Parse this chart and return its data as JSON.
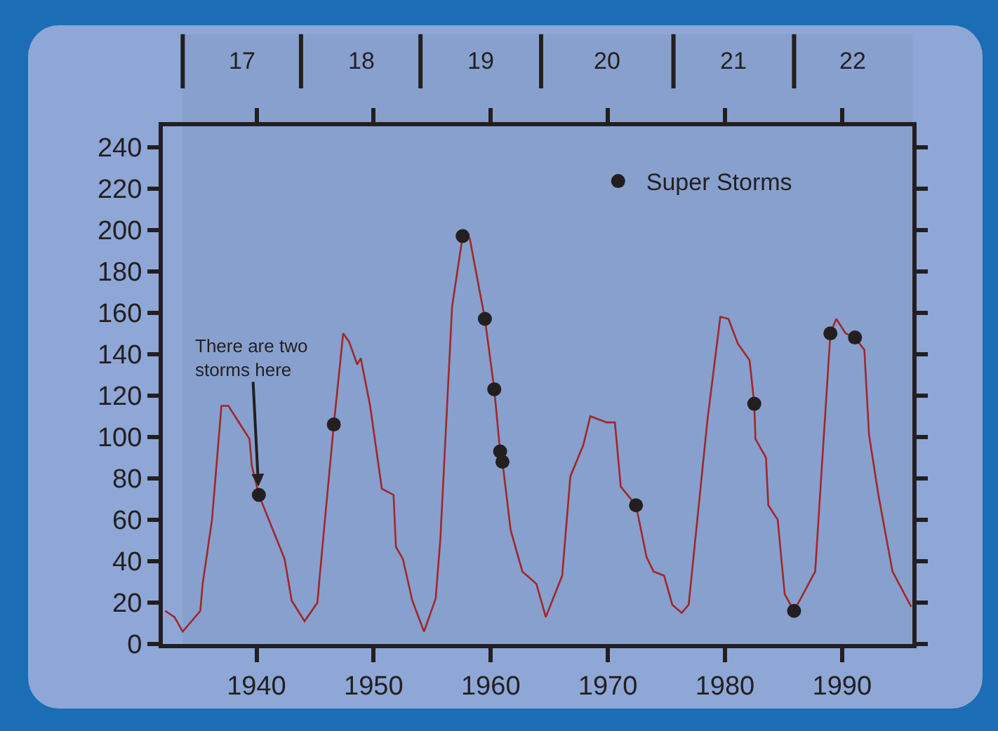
{
  "chart_data": {
    "type": "line",
    "xlim": [
      1932,
      1996
    ],
    "xticks": [
      1940,
      1950,
      1960,
      1970,
      1980,
      1990
    ],
    "ylim": [
      0,
      250
    ],
    "yticks": [
      0,
      20,
      40,
      60,
      80,
      100,
      120,
      140,
      160,
      180,
      200,
      220,
      240
    ],
    "bands": [
      {
        "axis": "x",
        "from": 1933.7,
        "to": 1943.8,
        "label": "17"
      },
      {
        "axis": "x",
        "from": 1943.8,
        "to": 1954.0,
        "label": "18"
      },
      {
        "axis": "x",
        "from": 1954.0,
        "to": 1964.3,
        "label": "19"
      },
      {
        "axis": "x",
        "from": 1964.3,
        "to": 1975.6,
        "label": "20"
      },
      {
        "axis": "x",
        "from": 1975.6,
        "to": 1985.9,
        "label": "21"
      },
      {
        "axis": "x",
        "from": 1985.9,
        "to": 1996,
        "label": "22"
      }
    ],
    "grid": false,
    "legend": "top right",
    "annotations": [
      {
        "text": "There are two storms here",
        "x": 1940.2,
        "y": 72
      }
    ],
    "series": [
      {
        "color": "#a0272a",
        "line_style": "solid",
        "marker": "none",
        "x": [
          1932.2,
          1933.0,
          1933.7,
          1935.2,
          1935.4,
          1936.2,
          1937.0,
          1937.6,
          1939.4,
          1939.6,
          1940.2,
          1942.4,
          1943.0,
          1944.1,
          1945.2,
          1945.4,
          1946.6,
          1947.4,
          1947.9,
          1948.6,
          1948.9,
          1949.7,
          1950.7,
          1951.7,
          1951.9,
          1952.5,
          1953.3,
          1954.3,
          1955.3,
          1955.7,
          1956.7,
          1957.6,
          1958.2,
          1959.5,
          1960.3,
          1960.8,
          1961.0,
          1961.7,
          1962.7,
          1963.9,
          1964.7,
          1966.1,
          1966.8,
          1967.9,
          1968.5,
          1969.9,
          1970.6,
          1971.1,
          1972.4,
          1973.3,
          1973.9,
          1974.8,
          1975.5,
          1976.3,
          1976.9,
          1978.5,
          1979.6,
          1980.3,
          1981.1,
          1982.1,
          1982.5,
          1982.6,
          1983.5,
          1983.7,
          1984.5,
          1985.1,
          1985.9,
          1987.7,
          1989.0,
          1989.5,
          1990.3,
          1991.1,
          1991.9,
          1992.3,
          1993.1,
          1994.3,
          1995.9
        ],
        "values": [
          16,
          13,
          6,
          16,
          29,
          60,
          115,
          115,
          99,
          86,
          72,
          41,
          21,
          11,
          20,
          33,
          106,
          150,
          146,
          135,
          138,
          115,
          75,
          72,
          47,
          41,
          21,
          6,
          22,
          51,
          163,
          197,
          196,
          157,
          123,
          93,
          88,
          55,
          35,
          29,
          13,
          33,
          81,
          96,
          110,
          107,
          107,
          76,
          67,
          42,
          35,
          33,
          19,
          15,
          19,
          108,
          158,
          157,
          145,
          137,
          116,
          99,
          90,
          67,
          60,
          24,
          16,
          35,
          150,
          157,
          150,
          148,
          142,
          101,
          72,
          35,
          18
        ]
      },
      {
        "type": "scatter",
        "name": "Super Storms",
        "color": "#231f20",
        "marker": "circle",
        "x": [
          1940.2,
          1946.6,
          1957.6,
          1959.5,
          1960.3,
          1960.8,
          1961.0,
          1972.4,
          1982.5,
          1985.9,
          1989.0,
          1991.1
        ],
        "values": [
          72,
          106,
          197,
          157,
          123,
          93,
          88,
          67,
          116,
          16,
          150,
          148
        ]
      }
    ]
  }
}
